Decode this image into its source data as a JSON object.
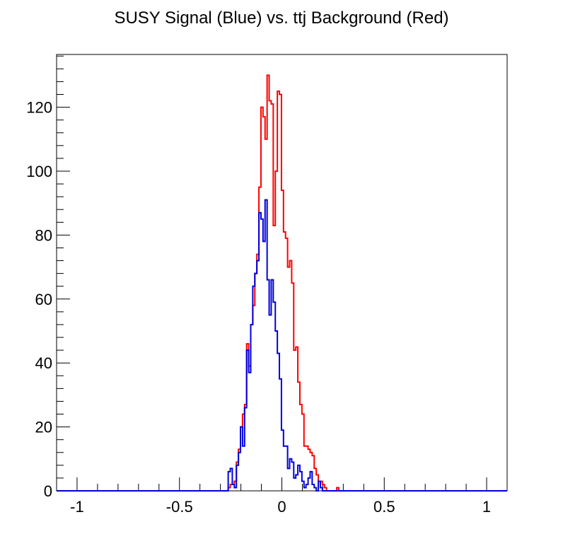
{
  "chart_data": {
    "type": "histogram",
    "title": "SUSY Signal (Blue) vs. ttj Background (Red)",
    "xlabel": "",
    "ylabel": "",
    "xlim": [
      -1.1,
      1.1
    ],
    "ylim": [
      0,
      136.5
    ],
    "x_ticks": [
      -1,
      -0.5,
      0,
      0.5,
      1
    ],
    "x_tick_labels": [
      "-1",
      "-0.5",
      "0",
      "0.5",
      "1"
    ],
    "y_ticks": [
      0,
      20,
      40,
      60,
      80,
      100,
      120
    ],
    "y_tick_labels": [
      "0",
      "20",
      "40",
      "60",
      "80",
      "100",
      "120"
    ],
    "grid": false,
    "legend": "none",
    "series": [
      {
        "color": "#ff0000",
        "bin_edges": [
          -0.262,
          -0.252,
          -0.242,
          -0.232,
          -0.222,
          -0.212,
          -0.202,
          -0.192,
          -0.182,
          -0.172,
          -0.162,
          -0.152,
          -0.142,
          -0.132,
          -0.122,
          -0.112,
          -0.102,
          -0.092,
          -0.082,
          -0.072,
          -0.062,
          -0.052,
          -0.042,
          -0.032,
          -0.022,
          -0.012,
          -0.002,
          0.008,
          0.018,
          0.028,
          0.038,
          0.048,
          0.058,
          0.068,
          0.078,
          0.088,
          0.098,
          0.108,
          0.118,
          0.128,
          0.138,
          0.148,
          0.158,
          0.168,
          0.178,
          0.188,
          0.198,
          0.208,
          0.218,
          0.228,
          0.238,
          0.248,
          0.258,
          0.268,
          0.278,
          0.288
        ],
        "counts": [
          1,
          2,
          2,
          3,
          9,
          13,
          20,
          24,
          27,
          46,
          39,
          52,
          58,
          68,
          74,
          95,
          120,
          117,
          110,
          130,
          122,
          121,
          83,
          100,
          125,
          124,
          94,
          81,
          79,
          70,
          72,
          65,
          44,
          45,
          34,
          27,
          24,
          14,
          14,
          13,
          12,
          11,
          7,
          5,
          3,
          3,
          2,
          1,
          0,
          0,
          0,
          0,
          0,
          1,
          0
        ]
      },
      {
        "color": "#0000dd",
        "bin_edges": [
          -0.262,
          -0.252,
          -0.242,
          -0.232,
          -0.222,
          -0.212,
          -0.202,
          -0.192,
          -0.182,
          -0.172,
          -0.162,
          -0.152,
          -0.142,
          -0.132,
          -0.122,
          -0.112,
          -0.102,
          -0.092,
          -0.082,
          -0.072,
          -0.062,
          -0.052,
          -0.042,
          -0.032,
          -0.022,
          -0.012,
          -0.002,
          0.008,
          0.018,
          0.028,
          0.038,
          0.048,
          0.058,
          0.068,
          0.078,
          0.088,
          0.098,
          0.108,
          0.118,
          0.128,
          0.138,
          0.148,
          0.158,
          0.168,
          0.178,
          0.188,
          0.198,
          0.208
        ],
        "counts": [
          6,
          7,
          2,
          1,
          8,
          12,
          20,
          14,
          26,
          44,
          37,
          52,
          64,
          68,
          72,
          87,
          85,
          78,
          91,
          66,
          55,
          66,
          59,
          50,
          43,
          35,
          19,
          14,
          14,
          7,
          10,
          9,
          4,
          5,
          8,
          6,
          3,
          1,
          2,
          4,
          6,
          2,
          1,
          0,
          3,
          1,
          0
        ]
      }
    ]
  }
}
